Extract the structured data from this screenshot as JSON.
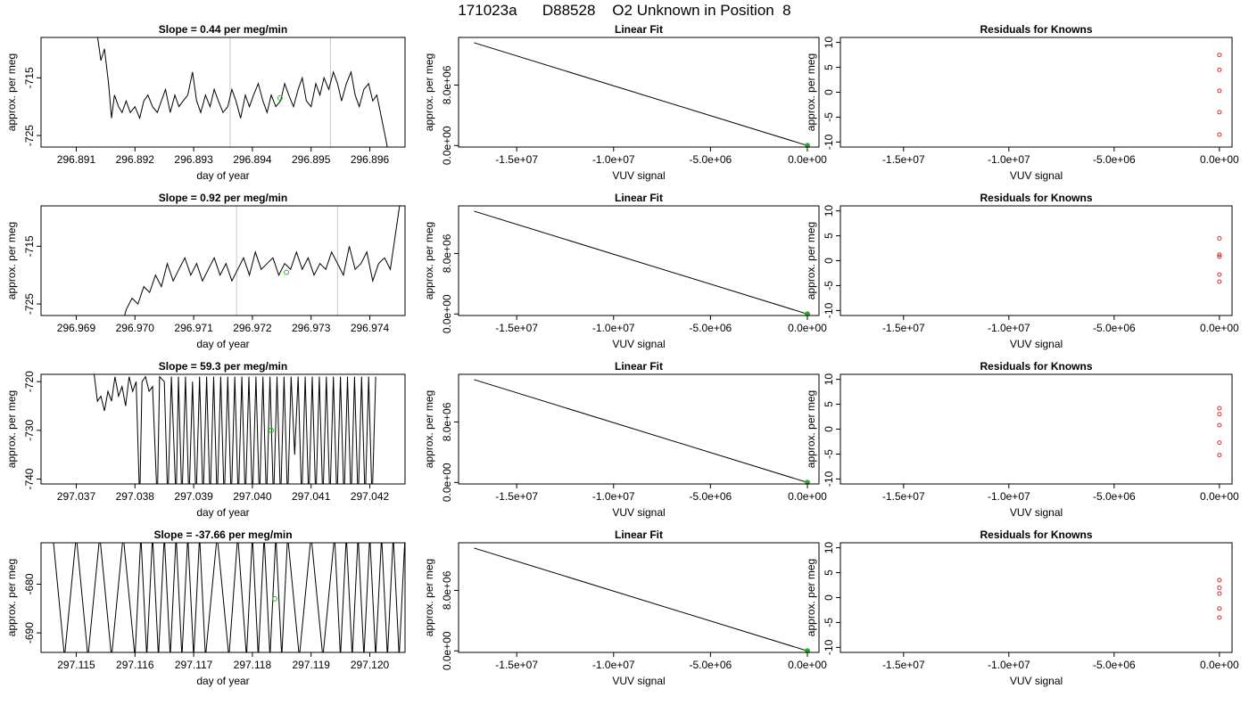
{
  "page_title": "171023a      D88528    O2 Unknown in Position  8",
  "chart_data": [
    {
      "type": "line",
      "title": "Slope =  0.44  per meg/min",
      "xlabel": "day of year",
      "ylabel": "approx. per meg",
      "xlim": [
        296.8904,
        296.8966
      ],
      "ylim": [
        -727,
        -708
      ],
      "x_ticks": [
        "296.891",
        "296.892",
        "296.893",
        "296.894",
        "296.895",
        "296.896"
      ],
      "y_ticks": [
        "-715",
        "-725"
      ],
      "vlines": [
        296.89362,
        296.89533
      ],
      "marker": {
        "x": 296.89447,
        "y": -718.5
      },
      "series": [
        {
          "x": [
            296.89135,
            296.89142,
            296.89148,
            296.89155,
            296.8916,
            296.89165,
            296.89172,
            296.89178,
            296.89185,
            296.89192,
            296.892,
            296.89208,
            296.89215,
            296.89222,
            296.8923,
            296.89238,
            296.89245,
            296.89252,
            296.8926,
            296.89268,
            296.89275,
            296.89282,
            296.8929,
            296.89298,
            296.89305,
            296.89312,
            296.8932,
            296.89328,
            296.89335,
            296.89342,
            296.8935,
            296.89358,
            296.89365,
            296.89372,
            296.8938,
            296.89388,
            296.89395,
            296.89402,
            296.8941,
            296.89418,
            296.89425,
            296.89432,
            296.8944,
            296.89448,
            296.89455,
            296.89462,
            296.8947,
            296.89478,
            296.89485,
            296.89492,
            296.895,
            296.89508,
            296.89515,
            296.89522,
            296.8953,
            296.89538,
            296.89545,
            296.89552,
            296.8956,
            296.89568,
            296.89575,
            296.89582,
            296.8959,
            296.89598,
            296.89605,
            296.89612,
            296.8962,
            296.89628,
            296.89635
          ],
          "y": [
            -707,
            -712,
            -710,
            -716,
            -722,
            -718,
            -720,
            -721,
            -719,
            -721,
            -720,
            -722,
            -719,
            -718,
            -720,
            -721,
            -719,
            -717,
            -721,
            -718,
            -720,
            -719,
            -718,
            -714,
            -719,
            -721,
            -718,
            -720,
            -717,
            -719,
            -721,
            -720,
            -717,
            -719,
            -722,
            -718,
            -720,
            -718,
            -716,
            -719,
            -721,
            -718,
            -720,
            -719,
            -716,
            -718,
            -720,
            -717,
            -715,
            -719,
            -720,
            -716,
            -718,
            -715,
            -717,
            -714,
            -716,
            -719,
            -716,
            -714,
            -718,
            -720,
            -717,
            -716,
            -719,
            -718,
            -722,
            -726,
            -730
          ]
        }
      ]
    },
    {
      "type": "line",
      "title": "Linear Fit",
      "xlabel": "VUV signal",
      "ylabel": "approx. per meg",
      "xlim": [
        -18000000,
        600000
      ],
      "ylim": [
        -200000,
        14300000
      ],
      "x_ticks": [
        "-1.5e+07",
        "-1.0e+07",
        "-5.0e+06",
        "0.0e+00"
      ],
      "y_ticks": [
        "0.0e+00",
        "8.0e+06"
      ],
      "line": {
        "x1": -17200000,
        "y1": 13600000,
        "x2": 0,
        "y2": 0
      },
      "marker": {
        "x": 0,
        "y": 0
      }
    },
    {
      "type": "scatter",
      "title": "Residuals for Knowns",
      "xlabel": "VUV signal",
      "ylabel": "approx. per meg",
      "xlim": [
        -18000000,
        600000
      ],
      "ylim": [
        -11,
        11
      ],
      "x_ticks": [
        "-1.5e+07",
        "-1.0e+07",
        "-5.0e+06",
        "0.0e+00"
      ],
      "y_ticks": [
        "-10",
        "-5",
        "0",
        "5",
        "10"
      ],
      "points": [
        {
          "x": 0,
          "y": 7.5
        },
        {
          "x": 0,
          "y": 4.5
        },
        {
          "x": 0,
          "y": 0.3
        },
        {
          "x": 0,
          "y": -4
        },
        {
          "x": 0,
          "y": -8.5
        }
      ]
    },
    {
      "type": "line",
      "title": "Slope =  0.92  per meg/min",
      "xlabel": "day of year",
      "ylabel": "approx. per meg",
      "xlim": [
        296.9684,
        296.9746
      ],
      "ylim": [
        -727,
        -708
      ],
      "x_ticks": [
        "296.969",
        "296.970",
        "296.971",
        "296.972",
        "296.973",
        "296.974"
      ],
      "y_ticks": [
        "-715",
        "-725"
      ],
      "vlines": [
        296.97173,
        296.97345
      ],
      "marker": {
        "x": 296.97258,
        "y": -719.5
      },
      "series": [
        {
          "x": [
            296.96975,
            296.96985,
            296.96995,
            296.97005,
            296.97015,
            296.97025,
            296.97035,
            296.97045,
            296.97055,
            296.97065,
            296.97075,
            296.97085,
            296.97095,
            296.97105,
            296.97115,
            296.97125,
            296.97135,
            296.97145,
            296.97155,
            296.97165,
            296.97175,
            296.97185,
            296.97195,
            296.97205,
            296.97215,
            296.97225,
            296.97235,
            296.97245,
            296.97255,
            296.97265,
            296.97275,
            296.97285,
            296.97295,
            296.97305,
            296.97315,
            296.97325,
            296.97335,
            296.97345,
            296.97355,
            296.97365,
            296.97375,
            296.97385,
            296.97395,
            296.97405,
            296.97415,
            296.97425,
            296.97435,
            296.97445,
            296.97455
          ],
          "y": [
            -730,
            -726,
            -724,
            -725,
            -722,
            -723,
            -720,
            -722,
            -718,
            -721,
            -719,
            -717,
            -720,
            -718,
            -721,
            -719,
            -717,
            -720,
            -718,
            -721,
            -719,
            -717,
            -720,
            -716,
            -719,
            -718,
            -717,
            -720,
            -718,
            -719,
            -716,
            -719,
            -717,
            -720,
            -718,
            -719,
            -716,
            -718,
            -720,
            -715,
            -719,
            -718,
            -716,
            -721,
            -718,
            -717,
            -719,
            -712,
            -705
          ]
        }
      ]
    },
    {
      "type": "line",
      "title": "Linear Fit",
      "xlabel": "VUV signal",
      "ylabel": "approx. per meg",
      "xlim": [
        -18000000,
        600000
      ],
      "ylim": [
        -200000,
        14300000
      ],
      "x_ticks": [
        "-1.5e+07",
        "-1.0e+07",
        "-5.0e+06",
        "0.0e+00"
      ],
      "y_ticks": [
        "0.0e+00",
        "8.0e+06"
      ],
      "line": {
        "x1": -17200000,
        "y1": 13600000,
        "x2": 0,
        "y2": 0
      },
      "marker": {
        "x": 0,
        "y": 0
      }
    },
    {
      "type": "scatter",
      "title": "Residuals for Knowns",
      "xlabel": "VUV signal",
      "ylabel": "approx. per meg",
      "xlim": [
        -18000000,
        600000
      ],
      "ylim": [
        -11,
        11
      ],
      "x_ticks": [
        "-1.5e+07",
        "-1.0e+07",
        "-5.0e+06",
        "0.0e+00"
      ],
      "y_ticks": [
        "-10",
        "-5",
        "0",
        "5",
        "10"
      ],
      "points": [
        {
          "x": 0,
          "y": 4.5
        },
        {
          "x": 0,
          "y": 1.2
        },
        {
          "x": 0,
          "y": 0.8
        },
        {
          "x": 0,
          "y": -2.8
        },
        {
          "x": 0,
          "y": -4.2
        }
      ]
    },
    {
      "type": "line",
      "title": "Slope =  59.3  per meg/min",
      "xlabel": "day of year",
      "ylabel": "approx. per meg",
      "xlim": [
        297.0364,
        297.0426
      ],
      "ylim": [
        -741,
        -718.5
      ],
      "x_ticks": [
        "297.037",
        "297.038",
        "297.039",
        "297.040",
        "297.041",
        "297.042"
      ],
      "y_ticks": [
        "-720",
        "-730",
        "-740"
      ],
      "vlines": [],
      "marker": {
        "x": 297.04032,
        "y": -730
      },
      "series": [
        {
          "x": [
            297.0373,
            297.03736,
            297.03742,
            297.03748,
            297.03754,
            297.0376,
            297.03766,
            297.03772,
            297.03778,
            297.03784,
            297.0379,
            297.03796,
            297.03802,
            297.03808,
            297.03812,
            297.03818,
            297.03824,
            297.0383,
            297.03838,
            297.03842,
            297.0385,
            297.03856,
            297.03862,
            297.0387,
            297.03874,
            297.0388,
            297.03886,
            297.03892,
            297.03898,
            297.03904,
            297.0391,
            297.03916,
            297.03922,
            297.03928,
            297.03934,
            297.0394,
            297.03946,
            297.03952,
            297.03958,
            297.03964,
            297.0397,
            297.03976,
            297.03982,
            297.03988,
            297.03994,
            297.04,
            297.04006,
            297.04012,
            297.04018,
            297.04024,
            297.0403,
            297.04036,
            297.04042,
            297.04048,
            297.04054,
            297.0406,
            297.04066,
            297.04072,
            297.04078,
            297.04084,
            297.0409,
            297.04096,
            297.04102,
            297.04108,
            297.04114,
            297.0412,
            297.04126,
            297.04132,
            297.04138,
            297.04144,
            297.0415,
            297.04156,
            297.04162,
            297.04168,
            297.04174,
            297.0418,
            297.04186,
            297.04192,
            297.04198,
            297.04204,
            297.0421
          ],
          "y": [
            -718,
            -724,
            -723,
            -726,
            -722,
            -724,
            -719,
            -723,
            -721,
            -725,
            -719,
            -722,
            -720,
            -745,
            -720,
            -719,
            -722,
            -721,
            -745,
            -719,
            -720,
            -745,
            -719,
            -745,
            -719,
            -745,
            -719,
            -745,
            -720,
            -745,
            -719,
            -745,
            -719,
            -745,
            -719,
            -745,
            -719,
            -745,
            -719,
            -745,
            -719,
            -745,
            -719,
            -745,
            -719,
            -745,
            -719,
            -745,
            -719,
            -745,
            -719,
            -745,
            -719,
            -745,
            -719,
            -745,
            -719,
            -735,
            -719,
            -745,
            -719,
            -745,
            -719,
            -745,
            -719,
            -745,
            -719,
            -745,
            -719,
            -745,
            -719,
            -745,
            -719,
            -745,
            -719,
            -745,
            -719,
            -745,
            -719,
            -745,
            -719
          ]
        }
      ]
    },
    {
      "type": "line",
      "title": "Linear Fit",
      "xlabel": "VUV signal",
      "ylabel": "approx. per meg",
      "xlim": [
        -18000000,
        600000
      ],
      "ylim": [
        -200000,
        14300000
      ],
      "x_ticks": [
        "-1.5e+07",
        "-1.0e+07",
        "-5.0e+06",
        "0.0e+00"
      ],
      "y_ticks": [
        "0.0e+00",
        "8.0e+06"
      ],
      "line": {
        "x1": -17200000,
        "y1": 13600000,
        "x2": 0,
        "y2": 0
      },
      "marker": {
        "x": 0,
        "y": 0
      }
    },
    {
      "type": "scatter",
      "title": "Residuals for Knowns",
      "xlabel": "VUV signal",
      "ylabel": "approx. per meg",
      "xlim": [
        -18000000,
        600000
      ],
      "ylim": [
        -11,
        11
      ],
      "x_ticks": [
        "-1.5e+07",
        "-1.0e+07",
        "-5.0e+06",
        "0.0e+00"
      ],
      "y_ticks": [
        "-10",
        "-5",
        "0",
        "5",
        "10"
      ],
      "points": [
        {
          "x": 0,
          "y": 4.2
        },
        {
          "x": 0,
          "y": 3.0
        },
        {
          "x": 0,
          "y": 0.8
        },
        {
          "x": 0,
          "y": -2.7
        },
        {
          "x": 0,
          "y": -5.2
        }
      ]
    },
    {
      "type": "line",
      "title": "Slope =  -37.66  per meg/min",
      "xlabel": "day of year",
      "ylabel": "approx. per meg",
      "xlim": [
        297.1144,
        297.1206
      ],
      "ylim": [
        -694,
        -671.5
      ],
      "x_ticks": [
        "297.115",
        "297.116",
        "297.117",
        "297.118",
        "297.119",
        "297.120"
      ],
      "y_ticks": [
        "-680",
        "-690"
      ],
      "vlines": [],
      "marker": {
        "x": 297.11838,
        "y": -683
      },
      "series": [
        {
          "x": [
            297.1146,
            297.1148,
            297.115,
            297.1152,
            297.1154,
            297.1156,
            297.1158,
            297.116,
            297.1161,
            297.1162,
            297.1163,
            297.1164,
            297.1165,
            297.1166,
            297.1167,
            297.1168,
            297.1169,
            297.117,
            297.1171,
            297.1172,
            297.1174,
            297.1176,
            297.11775,
            297.1179,
            297.118,
            297.1181,
            297.1182,
            297.1183,
            297.1184,
            297.1185,
            297.1186,
            297.1188,
            297.119,
            297.1192,
            297.1194,
            297.1195,
            297.1196,
            297.1197,
            297.1198,
            297.1199,
            297.12,
            297.1201,
            297.1202,
            297.1203,
            297.1204,
            297.1205,
            297.1206
          ],
          "y": [
            -670,
            -695,
            -670,
            -695,
            -670,
            -695,
            -670,
            -695,
            -670,
            -695,
            -670,
            -695,
            -670,
            -695,
            -670,
            -695,
            -670,
            -695,
            -670,
            -695,
            -670,
            -695,
            -670,
            -695,
            -670,
            -695,
            -670,
            -695,
            -670,
            -695,
            -670,
            -695,
            -670,
            -695,
            -670,
            -695,
            -670,
            -695,
            -670,
            -695,
            -670,
            -695,
            -670,
            -695,
            -670,
            -695,
            -670
          ]
        }
      ]
    },
    {
      "type": "line",
      "title": "Linear Fit",
      "xlabel": "VUV signal",
      "ylabel": "approx. per meg",
      "xlim": [
        -18000000,
        600000
      ],
      "ylim": [
        -200000,
        14300000
      ],
      "x_ticks": [
        "-1.5e+07",
        "-1.0e+07",
        "-5.0e+06",
        "0.0e+00"
      ],
      "y_ticks": [
        "0.0e+00",
        "8.0e+06"
      ],
      "line": {
        "x1": -17200000,
        "y1": 13600000,
        "x2": 0,
        "y2": 0
      },
      "marker": {
        "x": 0,
        "y": 0
      }
    },
    {
      "type": "scatter",
      "title": "Residuals for Knowns",
      "xlabel": "VUV signal",
      "ylabel": "approx. per meg",
      "xlim": [
        -18000000,
        600000
      ],
      "ylim": [
        -11,
        11
      ],
      "x_ticks": [
        "-1.5e+07",
        "-1.0e+07",
        "-5.0e+06",
        "0.0e+00"
      ],
      "y_ticks": [
        "-10",
        "-5",
        "0",
        "5",
        "10"
      ],
      "points": [
        {
          "x": 0,
          "y": 3.5
        },
        {
          "x": 0,
          "y": 2.0
        },
        {
          "x": 0,
          "y": 0.8
        },
        {
          "x": 0,
          "y": -2.2
        },
        {
          "x": 0,
          "y": -4.0
        }
      ]
    }
  ]
}
